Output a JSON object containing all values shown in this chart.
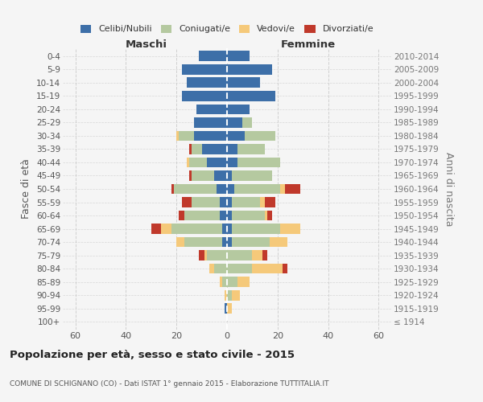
{
  "age_groups": [
    "100+",
    "95-99",
    "90-94",
    "85-89",
    "80-84",
    "75-79",
    "70-74",
    "65-69",
    "60-64",
    "55-59",
    "50-54",
    "45-49",
    "40-44",
    "35-39",
    "30-34",
    "25-29",
    "20-24",
    "15-19",
    "10-14",
    "5-9",
    "0-4"
  ],
  "birth_years": [
    "≤ 1914",
    "1915-1919",
    "1920-1924",
    "1925-1929",
    "1930-1934",
    "1935-1939",
    "1940-1944",
    "1945-1949",
    "1950-1954",
    "1955-1959",
    "1960-1964",
    "1965-1969",
    "1970-1974",
    "1975-1979",
    "1980-1984",
    "1985-1989",
    "1990-1994",
    "1995-1999",
    "2000-2004",
    "2005-2009",
    "2010-2014"
  ],
  "maschi": {
    "celibi": [
      0,
      1,
      0,
      0,
      0,
      0,
      2,
      2,
      3,
      3,
      4,
      5,
      8,
      10,
      13,
      13,
      12,
      18,
      16,
      18,
      11
    ],
    "coniugati": [
      0,
      0,
      0,
      2,
      5,
      8,
      15,
      20,
      14,
      11,
      17,
      9,
      7,
      4,
      6,
      0,
      0,
      0,
      0,
      0,
      0
    ],
    "vedovi": [
      0,
      0,
      1,
      1,
      2,
      1,
      3,
      4,
      0,
      0,
      0,
      0,
      1,
      0,
      1,
      0,
      0,
      0,
      0,
      0,
      0
    ],
    "divorziati": [
      0,
      0,
      0,
      0,
      0,
      2,
      0,
      4,
      2,
      4,
      1,
      1,
      0,
      1,
      0,
      0,
      0,
      0,
      0,
      0,
      0
    ]
  },
  "femmine": {
    "nubili": [
      0,
      0,
      0,
      0,
      0,
      0,
      2,
      2,
      2,
      2,
      3,
      2,
      4,
      4,
      7,
      6,
      9,
      19,
      13,
      18,
      9
    ],
    "coniugate": [
      0,
      0,
      2,
      4,
      10,
      10,
      15,
      19,
      13,
      11,
      18,
      16,
      17,
      11,
      12,
      4,
      0,
      0,
      0,
      0,
      0
    ],
    "vedove": [
      0,
      2,
      3,
      5,
      12,
      4,
      7,
      8,
      1,
      2,
      2,
      0,
      0,
      0,
      0,
      0,
      0,
      0,
      0,
      0,
      0
    ],
    "divorziate": [
      0,
      0,
      0,
      0,
      2,
      2,
      0,
      0,
      2,
      4,
      6,
      0,
      0,
      0,
      0,
      0,
      0,
      0,
      0,
      0,
      0
    ]
  },
  "colors": {
    "celibi": "#3d6fa8",
    "coniugati": "#b5c9a0",
    "vedovi": "#f5c97a",
    "divorziati": "#c0392b"
  },
  "title": "Popolazione per età, sesso e stato civile - 2015",
  "subtitle": "COMUNE DI SCHIGNANO (CO) - Dati ISTAT 1° gennaio 2015 - Elaborazione TUTTITALIA.IT",
  "xlabel_left": "Maschi",
  "xlabel_right": "Femmine",
  "ylabel": "Fasce di età",
  "ylabel_right": "Anni di nascita",
  "xlim": 65,
  "bg_color": "#f5f5f5",
  "grid_color": "#cccccc"
}
